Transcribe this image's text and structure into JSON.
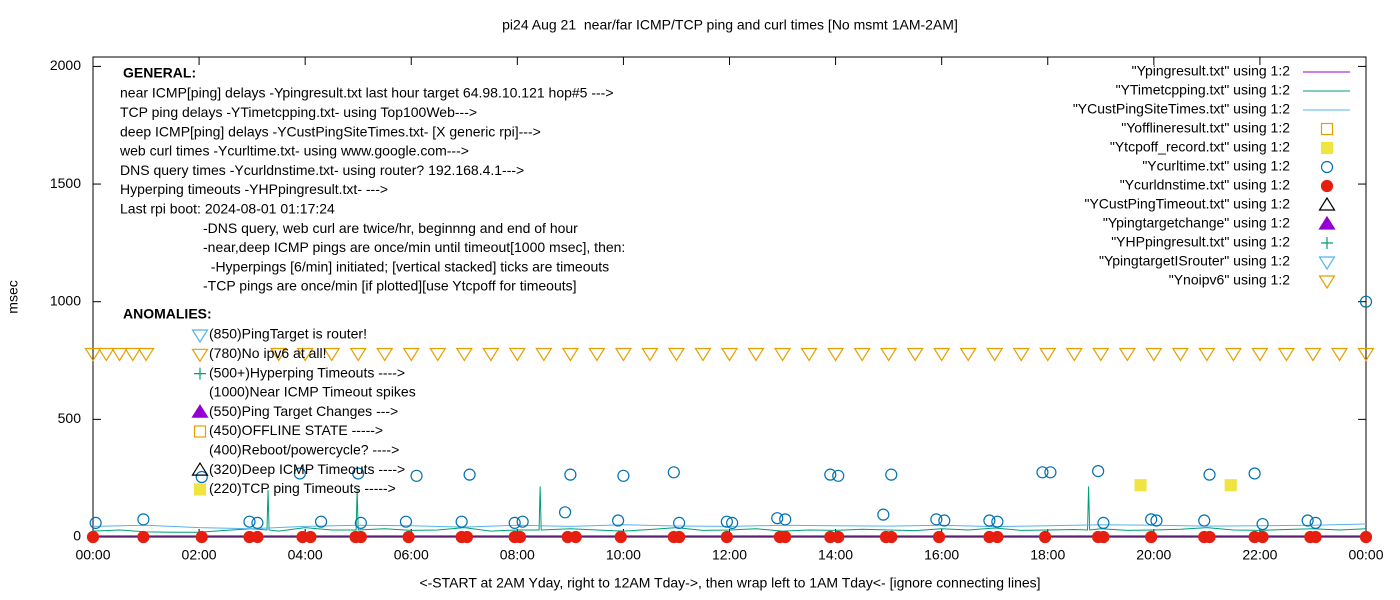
{
  "chart_data": {
    "type": "line",
    "title": "pi24 Aug 21  near/far ICMP/TCP ping and curl times [No msmt 1AM-2AM]",
    "y_label": "msec",
    "x_label": "<-START at 2AM Yday, right to 12AM Tday->, then wrap left to 1AM Tday<- [ignore connecting lines]",
    "xlim": [
      0,
      24
    ],
    "xticks": [
      {
        "value": 0,
        "label": "00:00"
      },
      {
        "value": 2,
        "label": "02:00"
      },
      {
        "value": 4,
        "label": "04:00"
      },
      {
        "value": 6,
        "label": "06:00"
      },
      {
        "value": 8,
        "label": "08:00"
      },
      {
        "value": 10,
        "label": "10:00"
      },
      {
        "value": 12,
        "label": "12:00"
      },
      {
        "value": 14,
        "label": "14:00"
      },
      {
        "value": 16,
        "label": "16:00"
      },
      {
        "value": 18,
        "label": "18:00"
      },
      {
        "value": 20,
        "label": "20:00"
      },
      {
        "value": 22,
        "label": "22:00"
      },
      {
        "value": 24,
        "label": "00:00"
      }
    ],
    "ylim": [
      0,
      2040
    ],
    "yticks": [
      0,
      500,
      1000,
      1500,
      2000
    ],
    "legend": "top-right",
    "general_title": "GENERAL:",
    "general": [
      "near ICMP[ping] delays -Ypingresult.txt last hour target 64.98.10.121 hop#5 --->",
      "TCP ping delays -YTimetcpping.txt- using Top100Web--->",
      "deep ICMP[ping] delays -YCustPingSiteTimes.txt- [X generic rpi]--->",
      "web curl times -Ycurltime.txt- using www.google.com--->",
      "DNS query times -Ycurldnstime.txt- using router? 192.168.4.1--->",
      "Hyperping timeouts -YHPpingresult.txt- --->",
      "Last rpi boot: 2024-08-01 01:17:24",
      "-DNS query, web curl are twice/hr, beginnng and end of hour",
      "-near,deep ICMP pings are once/min until timeout[1000 msec], then:",
      "  -Hyperpings [6/min] initiated; [vertical stacked] ticks are timeouts",
      "-TCP pings are once/min [if plotted][use Ytcpoff for timeouts]"
    ],
    "anomalies_title": "ANOMALIES:",
    "anomalies": [
      {
        "text": "(850)PingTarget is router!",
        "marker": "tri-down-open",
        "color": "#56b4e9"
      },
      {
        "text": "(780)No ipv6 at all!",
        "marker": "tri-down-open",
        "color": "#e69f00"
      },
      {
        "text": "(500+)Hyperping Timeouts ---->",
        "marker": "plus",
        "color": "#009e73"
      },
      {
        "text": "(1000)Near ICMP Timeout spikes"
      },
      {
        "text": "(550)Ping Target Changes --->",
        "marker": "tri-up",
        "color": "#9400d3"
      },
      {
        "text": "(450)OFFLINE STATE ----->",
        "marker": "square-open",
        "color": "#e69f00"
      },
      {
        "text": "(400)Reboot/powercycle? ---->"
      },
      {
        "text": "(320)Deep ICMP Timeouts ---->",
        "marker": "tri-up-open",
        "color": "#000000"
      },
      {
        "text": "(220)TCP ping Timeouts ----->",
        "marker": "square",
        "color": "#f0e442"
      }
    ],
    "series": [
      {
        "name": "\"Ypingresult.txt\" using 1:2",
        "style": "line",
        "color": "#9400d3",
        "x": [
          0,
          6,
          12,
          18,
          24
        ],
        "values": [
          5,
          5,
          5,
          5,
          5
        ]
      },
      {
        "name": "\"YTimetcpping.txt\" using 1:2",
        "style": "line",
        "color": "#009e73",
        "x": [
          0,
          0.5,
          1,
          1.5,
          2,
          2.5,
          3,
          3.28,
          3.3,
          3.32,
          3.5,
          4,
          4.5,
          4.96,
          4.98,
          5,
          5.5,
          6,
          6.5,
          7,
          7.5,
          8,
          8.41,
          8.43,
          8.45,
          9,
          9.5,
          10,
          10.5,
          11,
          11.5,
          12,
          12.5,
          13,
          13.5,
          14,
          14.5,
          15,
          15.5,
          16,
          16.5,
          17,
          17.5,
          18,
          18.5,
          18.75,
          18.77,
          18.79,
          19,
          19.5,
          20,
          20.5,
          21,
          21.5,
          22,
          22.5,
          23,
          23.5,
          24
        ],
        "values": [
          25,
          30,
          22,
          20,
          20,
          28,
          35,
          30,
          200,
          30,
          25,
          40,
          30,
          30,
          200,
          30,
          35,
          28,
          30,
          40,
          25,
          30,
          30,
          215,
          30,
          35,
          30,
          25,
          32,
          40,
          28,
          30,
          35,
          25,
          30,
          28,
          33,
          30,
          27,
          35,
          30,
          38,
          28,
          30,
          32,
          30,
          215,
          30,
          35,
          28,
          30,
          33,
          40,
          30,
          28,
          32,
          35,
          30,
          35
        ]
      },
      {
        "name": "\"YCustPingSiteTimes.txt\" using 1:2",
        "style": "line",
        "color": "#56b4e9",
        "x": [
          0,
          1,
          2,
          3,
          4,
          5,
          6,
          7,
          8,
          9,
          10,
          11,
          12,
          13,
          14,
          15,
          16,
          17,
          18,
          19,
          20,
          21,
          22,
          23,
          24
        ],
        "values": [
          45,
          50,
          40,
          35,
          45,
          50,
          48,
          42,
          50,
          45,
          52,
          47,
          45,
          50,
          48,
          46,
          50,
          44,
          48,
          52,
          50,
          46,
          48,
          50,
          55
        ]
      },
      {
        "name": "\"Yofflineresult.txt\" using 1:2",
        "style": "square-open",
        "color": "#e69f00",
        "x": [],
        "values": []
      },
      {
        "name": "\"Ytcpoff_record.txt\" using 1:2",
        "style": "square",
        "color": "#f0e442",
        "x": [
          19.75,
          21.45
        ],
        "values": [
          220,
          220
        ]
      },
      {
        "name": "\"Ycurltime.txt\" using 1:2",
        "style": "circle-open",
        "color": "#0072b2",
        "x": [
          0.05,
          0.95,
          2.05,
          2.95,
          3.1,
          3.9,
          4.3,
          5.0,
          5.05,
          5.9,
          6.1,
          6.95,
          7.1,
          7.95,
          8.1,
          8.9,
          9.0,
          9.9,
          10.0,
          10.95,
          11.05,
          11.95,
          12.05,
          12.9,
          13.05,
          13.9,
          14.05,
          14.9,
          15.05,
          15.9,
          16.05,
          16.9,
          17.05,
          17.9,
          18.05,
          18.95,
          19.05,
          19.95,
          20.05,
          20.95,
          21.05,
          21.9,
          22.05,
          22.9,
          23.05,
          24.0
        ],
        "values": [
          60,
          75,
          255,
          65,
          60,
          270,
          65,
          270,
          60,
          65,
          260,
          65,
          265,
          60,
          65,
          105,
          265,
          70,
          260,
          275,
          60,
          65,
          60,
          80,
          75,
          265,
          260,
          95,
          265,
          75,
          70,
          70,
          65,
          275,
          275,
          280,
          60,
          75,
          70,
          70,
          265,
          270,
          55,
          70,
          60,
          1000
        ]
      },
      {
        "name": "\"Ycurldnstime.txt\" using 1:2",
        "style": "circle",
        "color": "#e51e10",
        "x": [
          0,
          0.95,
          2.05,
          2.95,
          3.1,
          3.95,
          4.1,
          4.95,
          5.05,
          5.95,
          6.95,
          7.05,
          7.95,
          8.05,
          8.95,
          9.1,
          9.95,
          10.95,
          11.05,
          11.95,
          12.95,
          13.05,
          13.9,
          14.05,
          14.95,
          15.05,
          15.95,
          16.9,
          17.05,
          17.95,
          18.95,
          19.05,
          19.95,
          20.95,
          21.05,
          21.9,
          22.05,
          22.95,
          23.05,
          24
        ],
        "values": [
          0,
          0,
          0,
          0,
          0,
          0,
          0,
          0,
          0,
          0,
          0,
          0,
          0,
          0,
          0,
          0,
          0,
          0,
          0,
          0,
          0,
          0,
          0,
          0,
          0,
          0,
          0,
          0,
          0,
          0,
          0,
          0,
          0,
          0,
          0,
          0,
          0,
          0,
          0,
          0
        ]
      },
      {
        "name": "\"YCustPingTimeout.txt\" using 1:2",
        "style": "tri-up-open",
        "color": "#000000",
        "x": [],
        "values": []
      },
      {
        "name": "\"Ypingtargetchange\" using 1:2",
        "style": "tri-up",
        "color": "#9400d3",
        "x": [],
        "values": []
      },
      {
        "name": "\"YHPpingresult.txt\" using 1:2",
        "style": "plus",
        "color": "#009e73",
        "x": [],
        "values": []
      },
      {
        "name": "\"YpingtargetISrouter\" using 1:2",
        "style": "tri-down-open",
        "color": "#56b4e9",
        "x": [],
        "values": []
      },
      {
        "name": "\"Ynoipv6\" using 1:2",
        "style": "tri-down-open",
        "color": "#e69f00",
        "x": [
          0,
          0.25,
          0.5,
          0.75,
          1.0,
          3.5,
          4,
          4.5,
          5,
          5.5,
          6,
          6.5,
          7,
          7.5,
          8,
          8.5,
          9,
          9.5,
          10,
          10.5,
          11,
          11.5,
          12,
          12.5,
          13,
          13.5,
          14,
          14.5,
          15,
          15.5,
          16,
          16.5,
          17,
          17.5,
          18,
          18.5,
          19,
          19.5,
          20,
          20.5,
          21,
          21.5,
          22,
          22.5,
          23,
          23.5,
          24
        ],
        "values": [
          780,
          780,
          780,
          780,
          780,
          780,
          780,
          780,
          780,
          780,
          780,
          780,
          780,
          780,
          780,
          780,
          780,
          780,
          780,
          780,
          780,
          780,
          780,
          780,
          780,
          780,
          780,
          780,
          780,
          780,
          780,
          780,
          780,
          780,
          780,
          780,
          780,
          780,
          780,
          780,
          780,
          780,
          780,
          780,
          780,
          780,
          780
        ]
      }
    ]
  }
}
